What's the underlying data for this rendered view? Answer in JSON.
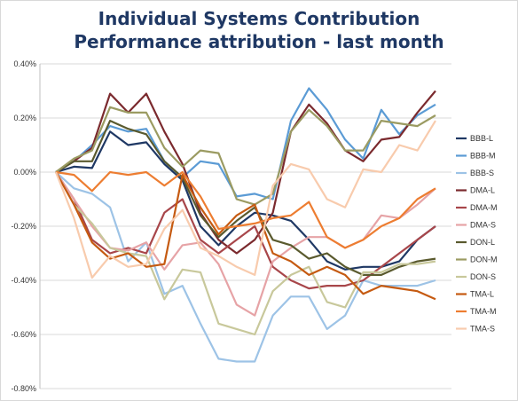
{
  "chart_data": {
    "type": "line",
    "title": "Individual Systems Contribution",
    "subtitle": "Performance attribution - last month",
    "xlabel": "",
    "ylabel": "",
    "ylim": [
      -0.008,
      0.004
    ],
    "yticks": [
      "0.40%",
      "0.20%",
      "0.00%",
      "-0.20%",
      "-0.40%",
      "-0.60%",
      "-0.80%"
    ],
    "grid": true,
    "legend": "right",
    "x": [
      1,
      2,
      3,
      4,
      5,
      6,
      7,
      8,
      9,
      10,
      11,
      12,
      13,
      14,
      15,
      16,
      17,
      18,
      19,
      20,
      21,
      22
    ],
    "series": [
      {
        "name": "BBB-L",
        "color": "#1f3864",
        "values": [
          0.0,
          0.0002,
          0.00015,
          0.0015,
          0.001,
          0.0011,
          0.0003,
          -0.0003,
          -0.002,
          -0.0027,
          -0.002,
          -0.0015,
          -0.0016,
          -0.0018,
          -0.0025,
          -0.0033,
          -0.0036,
          -0.0035,
          -0.0035,
          -0.0033,
          -0.0025,
          -0.002
        ]
      },
      {
        "name": "BBB-M",
        "color": "#5b9bd5",
        "values": [
          0.0,
          0.0004,
          0.001,
          0.0017,
          0.0015,
          0.0016,
          0.0004,
          -0.0002,
          0.0004,
          0.0003,
          -0.0009,
          -0.0008,
          -0.001,
          0.0019,
          0.0031,
          0.0023,
          0.0012,
          0.0005,
          0.0023,
          0.0014,
          0.0021,
          0.0025
        ]
      },
      {
        "name": "BBB-S",
        "color": "#9dc3e6",
        "values": [
          0.0,
          -0.0006,
          -0.0008,
          -0.0013,
          -0.0033,
          -0.0026,
          -0.0045,
          -0.0042,
          -0.0056,
          -0.0069,
          -0.007,
          -0.007,
          -0.0053,
          -0.0046,
          -0.0046,
          -0.0058,
          -0.0053,
          -0.004,
          -0.0042,
          -0.0042,
          -0.0042,
          -0.004
        ]
      },
      {
        "name": "DMA-L",
        "color": "#7b2a2e",
        "values": [
          0.0,
          0.0004,
          0.0009,
          0.0029,
          0.0022,
          0.0029,
          0.0015,
          0.0003,
          -0.0015,
          -0.0025,
          -0.003,
          -0.0025,
          -0.0015,
          0.0015,
          0.0025,
          0.0018,
          0.0008,
          0.0004,
          0.0012,
          0.0013,
          0.0022,
          0.003
        ]
      },
      {
        "name": "DMA-M",
        "color": "#a8464a",
        "values": [
          0.0,
          -0.001,
          -0.0025,
          -0.003,
          -0.0028,
          -0.003,
          -0.0015,
          -0.001,
          -0.0025,
          -0.003,
          -0.0025,
          -0.002,
          -0.0035,
          -0.004,
          -0.0043,
          -0.0042,
          -0.0042,
          -0.004,
          -0.0035,
          -0.003,
          -0.0025,
          -0.002
        ]
      },
      {
        "name": "DMA-S",
        "color": "#e6a3a6",
        "values": [
          0.0,
          -0.001,
          -0.002,
          -0.0028,
          -0.0029,
          -0.0026,
          -0.0036,
          -0.0027,
          -0.0026,
          -0.0034,
          -0.0049,
          -0.0053,
          -0.0033,
          -0.0028,
          -0.0024,
          -0.0024,
          -0.0028,
          -0.0025,
          -0.0016,
          -0.0017,
          -0.0012,
          -0.0006
        ]
      },
      {
        "name": "DON-L",
        "color": "#5a5a2e",
        "values": [
          0.0,
          0.0004,
          0.0004,
          0.0019,
          0.0016,
          0.0014,
          0.0004,
          -0.0002,
          -0.0016,
          -0.0024,
          -0.0018,
          -0.0013,
          -0.0025,
          -0.0027,
          -0.0032,
          -0.003,
          -0.0035,
          -0.0038,
          -0.0038,
          -0.0035,
          -0.0033,
          -0.0032
        ]
      },
      {
        "name": "DON-M",
        "color": "#9b9b62",
        "values": [
          0.0,
          0.0005,
          0.0008,
          0.0024,
          0.0022,
          0.0022,
          0.0009,
          0.0002,
          0.0008,
          0.0007,
          -0.001,
          -0.0012,
          -0.0008,
          0.0015,
          0.0023,
          0.0017,
          0.0008,
          0.0008,
          0.0019,
          0.0018,
          0.0017,
          0.0021
        ]
      },
      {
        "name": "DON-S",
        "color": "#c8c89b",
        "values": [
          0.0,
          -0.0012,
          -0.0019,
          -0.0028,
          -0.003,
          -0.0031,
          -0.0047,
          -0.0036,
          -0.0037,
          -0.0056,
          -0.0058,
          -0.006,
          -0.0044,
          -0.0038,
          -0.0035,
          -0.0048,
          -0.005,
          -0.0037,
          -0.0037,
          -0.0034,
          -0.0034,
          -0.0033
        ]
      },
      {
        "name": "TMA-L",
        "color": "#c55a11",
        "values": [
          0.0,
          -0.0012,
          -0.0026,
          -0.0032,
          -0.003,
          -0.0035,
          -0.0034,
          -0.0001,
          -0.0013,
          -0.0023,
          -0.0016,
          -0.0012,
          -0.003,
          -0.0033,
          -0.0038,
          -0.0035,
          -0.0038,
          -0.0045,
          -0.0042,
          -0.0043,
          -0.0044,
          -0.0047
        ]
      },
      {
        "name": "TMA-M",
        "color": "#ed7d31",
        "values": [
          0.0,
          -0.0001,
          -0.0007,
          0.0,
          -0.0001,
          0.0,
          -0.0005,
          0.0,
          -0.0009,
          -0.0021,
          -0.002,
          -0.0019,
          -0.0017,
          -0.0016,
          -0.0011,
          -0.0024,
          -0.0028,
          -0.0025,
          -0.002,
          -0.0017,
          -0.001,
          -0.0006
        ]
      },
      {
        "name": "TMA-S",
        "color": "#f8cbad",
        "values": [
          0.0,
          -0.0017,
          -0.0039,
          -0.0031,
          -0.0035,
          -0.0034,
          -0.0021,
          -0.0014,
          -0.0028,
          -0.0031,
          -0.0035,
          -0.0038,
          -0.0005,
          0.0003,
          0.0001,
          -0.001,
          -0.0013,
          0.0001,
          0.0,
          0.001,
          0.0008,
          0.0019
        ]
      }
    ]
  }
}
